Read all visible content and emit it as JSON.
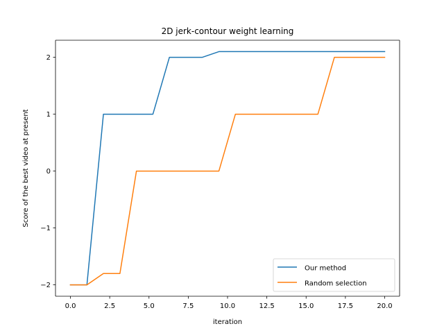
{
  "chart_data": {
    "type": "line",
    "title": "2D jerk-contour weight learning",
    "xlabel": "iteration",
    "ylabel": "Score of the best video at present",
    "xlim": [
      -0.95,
      20.95
    ],
    "ylim": [
      -2.2,
      2.3
    ],
    "xticks": [
      0.0,
      2.5,
      5.0,
      7.5,
      10.0,
      12.5,
      15.0,
      17.5,
      20.0
    ],
    "xtick_labels": [
      "0.0",
      "2.5",
      "5.0",
      "7.5",
      "10.0",
      "12.5",
      "15.0",
      "17.5",
      "20.0"
    ],
    "yticks": [
      -2,
      -1,
      0,
      1,
      2
    ],
    "ytick_labels": [
      "−2",
      "−1",
      "0",
      "1",
      "2"
    ],
    "grid": false,
    "legend_position": "lower-right",
    "series": [
      {
        "name": "Our method",
        "color": "#1f77b4",
        "x": [
          0,
          1.05,
          2.1,
          5.25,
          6.3,
          8.4,
          9.45,
          20
        ],
        "y": [
          -2,
          -2,
          1,
          1,
          2,
          2,
          2.1,
          2.1
        ]
      },
      {
        "name": "Random selection",
        "color": "#ff7f0e",
        "x": [
          0,
          1.05,
          2.1,
          3.15,
          4.2,
          9.45,
          10.5,
          15.75,
          16.8,
          20
        ],
        "y": [
          -2,
          -2,
          -1.8,
          -1.8,
          0,
          0,
          1,
          1,
          2,
          2
        ]
      }
    ]
  }
}
